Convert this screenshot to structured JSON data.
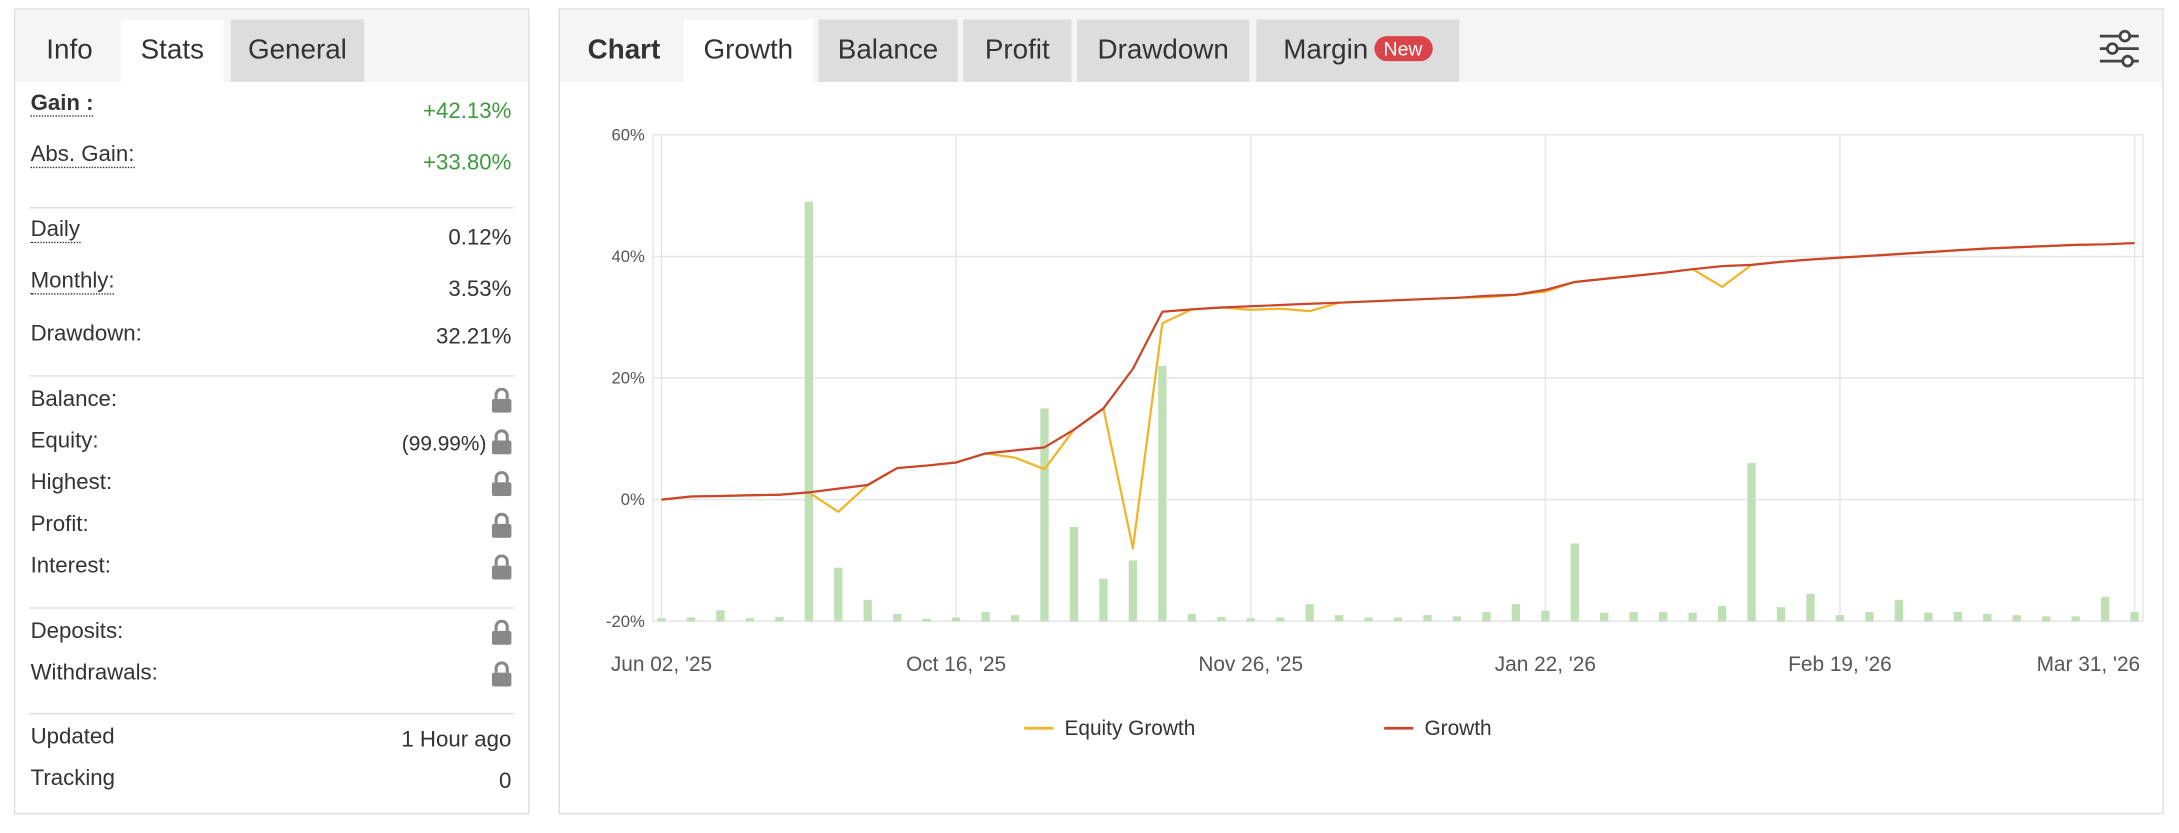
{
  "stats_panel": {
    "tabs": [
      "Info",
      "Stats",
      "General"
    ],
    "active_tab": 1,
    "groups": [
      [
        {
          "label": "Gain :",
          "value": "+42.13%",
          "dotted": true,
          "strong": true,
          "color": "#3c9a3c"
        },
        {
          "label": "Abs. Gain:",
          "value": "+33.80%",
          "dotted": true,
          "color": "#3c9a3c"
        }
      ],
      [
        {
          "label": "Daily",
          "value": "0.12%",
          "dotted": true
        },
        {
          "label": "Monthly:",
          "value": "3.53%",
          "dotted": true
        },
        {
          "label": "Drawdown:",
          "value": "32.21%"
        }
      ],
      [
        {
          "label": "Balance:",
          "locked": true
        },
        {
          "label": "Equity:",
          "value": "(99.99%)",
          "locked": true
        },
        {
          "label": "Highest:",
          "locked": true
        },
        {
          "label": "Profit:",
          "locked": true
        },
        {
          "label": "Interest:",
          "locked": true
        }
      ],
      [
        {
          "label": "Deposits:",
          "locked": true
        },
        {
          "label": "Withdrawals:",
          "locked": true
        }
      ],
      [
        {
          "label": "Updated",
          "value": "1 Hour ago"
        },
        {
          "label": "Tracking",
          "value": "0"
        }
      ]
    ]
  },
  "chart_tabs": {
    "tabs": [
      "Chart",
      "Growth",
      "Balance",
      "Profit",
      "Drawdown",
      "Margin"
    ],
    "active_tab": 1,
    "badge": "New"
  },
  "chart_data": {
    "type": "line",
    "xlim": [
      0,
      50
    ],
    "xticks": [
      {
        "value": 0,
        "label": "Jun 02, '25"
      },
      {
        "value": 10,
        "label": "Oct 16, '25"
      },
      {
        "value": 20,
        "label": "Nov 26, '25"
      },
      {
        "value": 30,
        "label": "Jan 22, '26"
      },
      {
        "value": 40,
        "label": "Feb 19, '26"
      },
      {
        "value": 50,
        "label": "Mar 31, '26"
      }
    ],
    "ylim": [
      -20,
      60
    ],
    "yticks": [
      {
        "value": -20,
        "label": "-20%"
      },
      {
        "value": 0,
        "label": "0%"
      },
      {
        "value": 20,
        "label": "20%"
      },
      {
        "value": 40,
        "label": "40%"
      },
      {
        "value": 60,
        "label": "60%"
      }
    ],
    "grid": true,
    "x": [
      0,
      1,
      2,
      3,
      4,
      5,
      6,
      7,
      8,
      9,
      10,
      11,
      12,
      13,
      14,
      15,
      16,
      17,
      18,
      19,
      20,
      21,
      22,
      23,
      24,
      25,
      26,
      27,
      28,
      29,
      30,
      31,
      32,
      33,
      34,
      35,
      36,
      37,
      38,
      39,
      40,
      41,
      42,
      43,
      44,
      45,
      46,
      47,
      48,
      49,
      50
    ],
    "series": [
      {
        "name": "Equity Growth",
        "color": "#f0b429",
        "values": [
          0.0,
          0.5,
          0.6,
          0.7,
          0.8,
          1.2,
          -2.0,
          2.4,
          5.2,
          5.6,
          6.1,
          7.6,
          6.9,
          5.0,
          11.5,
          15.0,
          -8.0,
          29.0,
          31.3,
          31.6,
          31.2,
          31.4,
          31.0,
          32.4,
          32.6,
          32.8,
          33.0,
          33.2,
          33.3,
          33.7,
          34.2,
          35.8,
          36.3,
          36.8,
          37.3,
          37.9,
          35.0,
          38.6,
          39.1,
          39.5,
          39.8,
          40.1,
          40.4,
          40.7,
          41.0,
          41.3,
          41.5,
          41.7,
          41.9,
          42.0,
          42.2
        ]
      },
      {
        "name": "Growth",
        "color": "#c9452c",
        "values": [
          0.0,
          0.5,
          0.6,
          0.7,
          0.8,
          1.2,
          1.8,
          2.4,
          5.2,
          5.6,
          6.1,
          7.6,
          8.1,
          8.6,
          11.5,
          15.0,
          21.5,
          30.9,
          31.3,
          31.6,
          31.8,
          32.0,
          32.2,
          32.4,
          32.6,
          32.8,
          33.0,
          33.2,
          33.5,
          33.7,
          34.5,
          35.8,
          36.3,
          36.8,
          37.3,
          37.9,
          38.4,
          38.6,
          39.1,
          39.5,
          39.8,
          40.1,
          40.4,
          40.7,
          41.0,
          41.3,
          41.5,
          41.7,
          41.9,
          42.0,
          42.2
        ]
      }
    ],
    "bars": {
      "color": "#bfe0b5",
      "values": [
        -19.5,
        -19.4,
        -18.2,
        -19.5,
        -19.3,
        49,
        -11.2,
        -16.5,
        -18.8,
        -19.6,
        -19.4,
        -18.5,
        -19.0,
        15,
        -4.5,
        -13,
        -10,
        22,
        -18.8,
        -19.3,
        -19.5,
        -19.4,
        -17.2,
        -19,
        -19.4,
        -19.4,
        -19,
        -19.2,
        -18.5,
        -17.2,
        -18.3,
        -7.2,
        -18.6,
        -18.5,
        -18.5,
        -18.6,
        -17.5,
        6,
        -17.7,
        -15.5,
        -19,
        -18.5,
        -16.5,
        -18.6,
        -18.5,
        -18.8,
        -19,
        -19.2,
        -19.2,
        -16,
        -18.5
      ]
    }
  }
}
